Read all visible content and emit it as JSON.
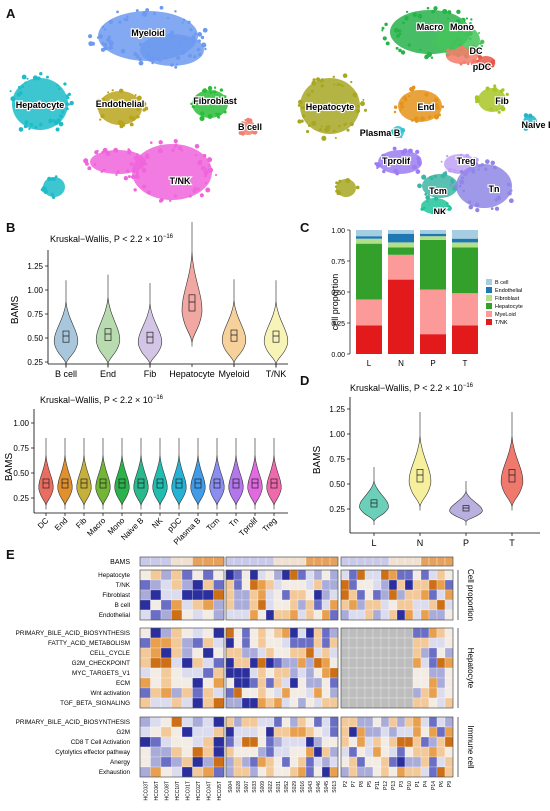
{
  "panels": {
    "A": "A",
    "B": "B",
    "C": "C",
    "D": "D",
    "E": "E"
  },
  "umap_left": {
    "labels": [
      "Myeloid",
      "Endothelial",
      "Fibroblast",
      "Hepatocyte",
      "B cell",
      "T/NK"
    ]
  },
  "umap_right": {
    "labels": [
      "Macro",
      "Mono",
      "DC",
      "pDC",
      "Hepatocyte",
      "End",
      "Fib",
      "Naive B",
      "Plasma B",
      "Tprolif",
      "Treg",
      "Tcm",
      "Tn",
      "NK"
    ]
  },
  "colors": {
    "hepatocyte": "#1cbcc8",
    "myeloid": "#6d9af0",
    "endothelial": "#b8a51c",
    "fibroblast": "#2bbd3a",
    "bcell": "#f08070",
    "tnk": "#f064dc",
    "macro": "#27b34a",
    "mono": "#45c45a",
    "dc": "#f47a6a",
    "pdc": "#e8584a",
    "hep_r": "#a7a724",
    "end_r": "#e4931b",
    "fib_r": "#a7c725",
    "naiveb": "#22b5c8",
    "plasmab": "#2ec4d2",
    "tprolif": "#9c7df2",
    "treg": "#bfa2f5",
    "tcm": "#3cb5a4",
    "tn": "#8f86e5",
    "nk": "#21c49b"
  },
  "panel_b_top": {
    "test_label": "Kruskal−Wallis, P < 2.2 × 10",
    "exponent": "−16",
    "ylabel": "BAMS",
    "yticks": [
      "1.25",
      "1.00",
      "0.75",
      "0.50",
      "0.25"
    ],
    "categories": [
      "B cell",
      "End",
      "Fib",
      "Hepatocyte",
      "Myeloid",
      "T/NK"
    ],
    "fills": [
      "#a9c7dc",
      "#b9dbb0",
      "#d3c5e5",
      "#f1a8a3",
      "#f6d19b",
      "#f8f4b8"
    ]
  },
  "panel_b_bottom": {
    "test_label": "Kruskal−Wallis, P < 2.2 × 10",
    "exponent": "−16",
    "ylabel": "BAMS",
    "yticks": [
      "1.00",
      "0.75",
      "0.50",
      "0.25"
    ],
    "categories": [
      "DC",
      "End",
      "Fib",
      "Macro",
      "Mono",
      "Naive B",
      "NK",
      "pDC",
      "Plasma B",
      "Tcm",
      "Tn",
      "Tprolif",
      "Treg"
    ],
    "fills": [
      "#ea6d61",
      "#e1902e",
      "#c4b03b",
      "#73b536",
      "#2bb34b",
      "#2ab98c",
      "#20bdb1",
      "#25b2d4",
      "#409be9",
      "#8b8ef0",
      "#b476ec",
      "#e26ae0",
      "#ef6aac"
    ]
  },
  "panel_c": {
    "ylabel": "cell proportion",
    "yticks": [
      "1.00",
      "0.75",
      "0.50",
      "0.25",
      "0.00"
    ],
    "categories": [
      "L",
      "N",
      "P",
      "T"
    ],
    "legend": [
      "B cell",
      "Endothelial",
      "Fibroblast",
      "Hepatocyte",
      "MyeLoid",
      "T/NK"
    ],
    "legend_colors": [
      "#a6cee3",
      "#1f78b4",
      "#b2df8a",
      "#33a02c",
      "#fb9a99",
      "#e31a1c"
    ]
  },
  "chart_data": {
    "type": "bar",
    "title": "",
    "xlabel": "",
    "ylabel": "cell proportion",
    "ylim": [
      0,
      1
    ],
    "categories": [
      "L",
      "N",
      "P",
      "T"
    ],
    "series": [
      {
        "name": "T/NK",
        "values": [
          0.23,
          0.6,
          0.16,
          0.23
        ]
      },
      {
        "name": "MyeLoid",
        "values": [
          0.21,
          0.2,
          0.36,
          0.26
        ]
      },
      {
        "name": "Hepatocyte",
        "values": [
          0.45,
          0.06,
          0.4,
          0.37
        ]
      },
      {
        "name": "Fibroblast",
        "values": [
          0.04,
          0.04,
          0.03,
          0.04
        ]
      },
      {
        "name": "Endothelial",
        "values": [
          0.02,
          0.07,
          0.02,
          0.03
        ]
      },
      {
        "name": "B cell",
        "values": [
          0.05,
          0.03,
          0.03,
          0.07
        ]
      }
    ]
  },
  "panel_d": {
    "test_label": "Kruskal−Wallis, P < 2.2 × 10",
    "exponent": "−16",
    "ylabel": "BAMS",
    "yticks": [
      "1.25",
      "1.00",
      "0.75",
      "0.50",
      "0.25"
    ],
    "categories": [
      "L",
      "N",
      "P",
      "T"
    ],
    "fills": [
      "#6ccfb9",
      "#f6f09e",
      "#b9b0e0",
      "#f0796d"
    ]
  },
  "panel_e": {
    "top_label": "BAMS",
    "group1_rows": [
      "Hepatocyte",
      "T/NK",
      "Fibroblast",
      "B cell",
      "Endothelial"
    ],
    "group1_title": "Cell proportion",
    "group2_rows": [
      "PRIMARY_BILE_ACID_BIOSYNTHESIS",
      "FATTY_ACID_METABOLISM",
      "CELL_CYCLE",
      "G2M_CHECKPOINT",
      "MYC_TARGETS_V1",
      "ECM",
      "Wnt activation",
      "TGF_BETA_SIGNALING"
    ],
    "group2_title": "Hepatocyte",
    "group3_rows": [
      "PRIMARY_BILE_ACID_BIOSYNTHESIS",
      "G2M",
      "CD8 T Cell Activation",
      "Cytolytics effector pathway",
      "Anergy",
      "Exhaustion"
    ],
    "group3_title": "Immune cell",
    "samples1": [
      "HCC03T",
      "HCC06T",
      "HCC08T",
      "HCC10T",
      "HCC01T",
      "HCC02T",
      "HCC04T",
      "HCC05T"
    ],
    "samples2": [
      "S004",
      "S028",
      "S007",
      "S033",
      "S009",
      "S022",
      "S031",
      "S052",
      "S029",
      "S016",
      "S043",
      "S046",
      "S045",
      "S013"
    ],
    "samples3": [
      "P2",
      "P7",
      "P8",
      "P5",
      "P11",
      "P12",
      "P13",
      "P3",
      "P10",
      "P1",
      "P4",
      "P14",
      "P6",
      "P9"
    ]
  }
}
